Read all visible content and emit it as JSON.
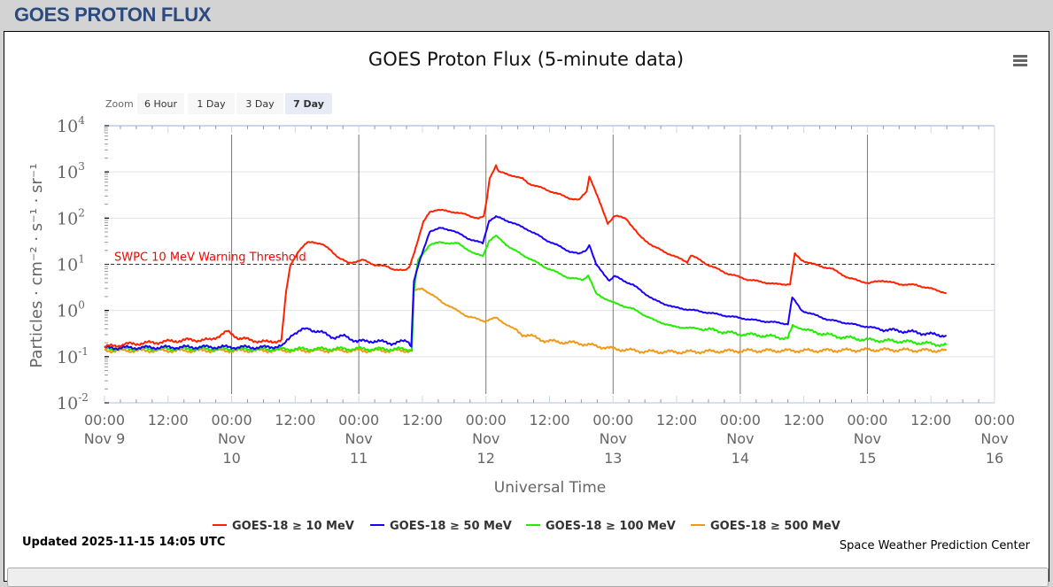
{
  "page_title": "GOES PROTON FLUX",
  "menu_icon": "hamburger-menu-icon",
  "zoom": {
    "label": "Zoom",
    "buttons": [
      "6 Hour",
      "1 Day",
      "3 Day",
      "7 Day"
    ],
    "selected": "7 Day"
  },
  "updated": "Updated 2025-11-15 14:05 UTC",
  "credit": "Space Weather Prediction Center",
  "chart_data": {
    "type": "line",
    "title": "GOES Proton Flux (5-minute data)",
    "xlabel": "Universal Time",
    "ylabel": "Particles · cm⁻² · s⁻¹ · sr⁻¹",
    "yscale": "log",
    "ylim_log10": [
      -2,
      4
    ],
    "y_ticks": [
      {
        "base": "10",
        "exp": "4"
      },
      {
        "base": "10",
        "exp": "3"
      },
      {
        "base": "10",
        "exp": "2"
      },
      {
        "base": "10",
        "exp": "1"
      },
      {
        "base": "10",
        "exp": "0"
      },
      {
        "base": "10",
        "exp": "-1"
      },
      {
        "base": "10",
        "exp": "-2"
      }
    ],
    "x_unit": "hours since 2025-11-09 00:00 UTC",
    "xlim": [
      0,
      168
    ],
    "x_ticks": [
      {
        "time": "00:00",
        "l2": "Nov 9",
        "l3": ""
      },
      {
        "time": "12:00",
        "l2": "",
        "l3": ""
      },
      {
        "time": "00:00",
        "l2": "Nov",
        "l3": "10"
      },
      {
        "time": "12:00",
        "l2": "",
        "l3": ""
      },
      {
        "time": "00:00",
        "l2": "Nov",
        "l3": "11"
      },
      {
        "time": "12:00",
        "l2": "",
        "l3": ""
      },
      {
        "time": "00:00",
        "l2": "Nov",
        "l3": "12"
      },
      {
        "time": "12:00",
        "l2": "",
        "l3": ""
      },
      {
        "time": "00:00",
        "l2": "Nov",
        "l3": "13"
      },
      {
        "time": "12:00",
        "l2": "",
        "l3": ""
      },
      {
        "time": "00:00",
        "l2": "Nov",
        "l3": "14"
      },
      {
        "time": "12:00",
        "l2": "",
        "l3": ""
      },
      {
        "time": "00:00",
        "l2": "Nov",
        "l3": "15"
      },
      {
        "time": "12:00",
        "l2": "",
        "l3": ""
      },
      {
        "time": "00:00",
        "l2": "Nov",
        "l3": "16"
      }
    ],
    "threshold": {
      "label": "SWPC 10 MeV Warning Threshold",
      "value": 10,
      "color": "#ff0000"
    },
    "legend_position": "bottom-center",
    "series": [
      {
        "name": "GOES-18 ≥ 10 MeV",
        "color": "#ff2200",
        "log10_flux": [
          [
            0,
            -0.79
          ],
          [
            4.2,
            -0.73
          ],
          [
            9.9,
            -0.69
          ],
          [
            15.4,
            -0.64
          ],
          [
            19.9,
            -0.64
          ],
          [
            23.2,
            -0.46
          ],
          [
            25.4,
            -0.6
          ],
          [
            27.6,
            -0.64
          ],
          [
            30.9,
            -0.69
          ],
          [
            33.4,
            -0.64
          ],
          [
            34.3,
            0.42
          ],
          [
            35.1,
            0.99
          ],
          [
            36.6,
            1.28
          ],
          [
            38.3,
            1.47
          ],
          [
            39.3,
            1.49
          ],
          [
            41,
            1.43
          ],
          [
            42.6,
            1.32
          ],
          [
            44.3,
            1.13
          ],
          [
            46,
            1.03
          ],
          [
            48.8,
            1.09
          ],
          [
            51,
            0.99
          ],
          [
            53.3,
            0.95
          ],
          [
            54.4,
            0.9
          ],
          [
            56.7,
            0.86
          ],
          [
            57.5,
            0.93
          ],
          [
            58.5,
            1.28
          ],
          [
            60.2,
            1.91
          ],
          [
            61.4,
            2.14
          ],
          [
            62.7,
            2.18
          ],
          [
            65.6,
            2.14
          ],
          [
            68.4,
            2.07
          ],
          [
            70.6,
            1.99
          ],
          [
            71.6,
            2.03
          ],
          [
            72.2,
            2.43
          ],
          [
            72.7,
            2.87
          ],
          [
            73.9,
            3.14
          ],
          [
            74.4,
            3.0
          ],
          [
            76.8,
            2.93
          ],
          [
            78.9,
            2.85
          ],
          [
            80.1,
            2.75
          ],
          [
            83.3,
            2.62
          ],
          [
            87.8,
            2.43
          ],
          [
            89.6,
            2.39
          ],
          [
            91,
            2.58
          ],
          [
            91.5,
            2.91
          ],
          [
            92.1,
            2.75
          ],
          [
            93.5,
            2.33
          ],
          [
            95,
            1.89
          ],
          [
            96.3,
            2.05
          ],
          [
            98.5,
            1.99
          ],
          [
            101,
            1.61
          ],
          [
            103.7,
            1.38
          ],
          [
            107.4,
            1.18
          ],
          [
            110,
            1.05
          ],
          [
            110.7,
            1.2
          ],
          [
            113.9,
            0.99
          ],
          [
            117.6,
            0.8
          ],
          [
            121.4,
            0.67
          ],
          [
            126.6,
            0.57
          ],
          [
            129.4,
            0.57
          ],
          [
            130.3,
            1.22
          ],
          [
            131.6,
            1.09
          ],
          [
            134.1,
            0.99
          ],
          [
            137.3,
            0.9
          ],
          [
            140.5,
            0.7
          ],
          [
            144.3,
            0.59
          ],
          [
            146.8,
            0.65
          ],
          [
            150,
            0.57
          ],
          [
            153.2,
            0.55
          ],
          [
            156.4,
            0.46
          ],
          [
            158.9,
            0.38
          ]
        ]
      },
      {
        "name": "GOES-18 ≥ 50 MeV",
        "color": "#1a00ff",
        "log10_flux": [
          [
            0,
            -0.81
          ],
          [
            10,
            -0.8
          ],
          [
            20,
            -0.79
          ],
          [
            30,
            -0.8
          ],
          [
            33.7,
            -0.77
          ],
          [
            35.5,
            -0.5
          ],
          [
            38.3,
            -0.39
          ],
          [
            41,
            -0.48
          ],
          [
            43.3,
            -0.58
          ],
          [
            45.5,
            -0.56
          ],
          [
            47.7,
            -0.67
          ],
          [
            51,
            -0.66
          ],
          [
            54.4,
            -0.71
          ],
          [
            57.2,
            -0.66
          ],
          [
            57.9,
            -0.75
          ],
          [
            58.4,
            0.65
          ],
          [
            59.4,
            1.03
          ],
          [
            61.4,
            1.72
          ],
          [
            63.4,
            1.78
          ],
          [
            65.6,
            1.74
          ],
          [
            68.4,
            1.57
          ],
          [
            71.4,
            1.45
          ],
          [
            72.6,
            1.95
          ],
          [
            73.9,
            2.03
          ],
          [
            76.8,
            1.91
          ],
          [
            80.1,
            1.74
          ],
          [
            83.3,
            1.53
          ],
          [
            87.8,
            1.28
          ],
          [
            89.6,
            1.22
          ],
          [
            91,
            1.32
          ],
          [
            91.5,
            1.43
          ],
          [
            92.8,
            0.99
          ],
          [
            95.3,
            0.65
          ],
          [
            96.3,
            0.74
          ],
          [
            99.8,
            0.55
          ],
          [
            103.7,
            0.23
          ],
          [
            107.4,
            0.07
          ],
          [
            112.5,
            -0.02
          ],
          [
            117.6,
            -0.12
          ],
          [
            122.7,
            -0.21
          ],
          [
            129,
            -0.29
          ],
          [
            129.8,
            0.28
          ],
          [
            131.6,
            0.0
          ],
          [
            136.6,
            -0.2
          ],
          [
            141.8,
            -0.31
          ],
          [
            146.8,
            -0.41
          ],
          [
            152,
            -0.46
          ],
          [
            156.4,
            -0.52
          ],
          [
            158.9,
            -0.54
          ]
        ]
      },
      {
        "name": "GOES-18 ≥ 100 MeV",
        "color": "#22ee00",
        "log10_flux": [
          [
            0,
            -0.83
          ],
          [
            15,
            -0.83
          ],
          [
            30,
            -0.84
          ],
          [
            45,
            -0.83
          ],
          [
            58,
            -0.84
          ],
          [
            58.4,
            0.42
          ],
          [
            59.2,
            1.09
          ],
          [
            61.4,
            1.43
          ],
          [
            63.4,
            1.47
          ],
          [
            66.7,
            1.45
          ],
          [
            70,
            1.22
          ],
          [
            71.4,
            1.18
          ],
          [
            72.6,
            1.51
          ],
          [
            73.9,
            1.61
          ],
          [
            76.8,
            1.34
          ],
          [
            80.1,
            1.13
          ],
          [
            83.3,
            0.93
          ],
          [
            87.8,
            0.7
          ],
          [
            90.3,
            0.67
          ],
          [
            91.3,
            0.76
          ],
          [
            92.8,
            0.36
          ],
          [
            96,
            0.17
          ],
          [
            99.8,
            0.03
          ],
          [
            103.7,
            -0.21
          ],
          [
            107.4,
            -0.35
          ],
          [
            113.9,
            -0.41
          ],
          [
            118.9,
            -0.5
          ],
          [
            124,
            -0.54
          ],
          [
            129,
            -0.6
          ],
          [
            129.9,
            -0.33
          ],
          [
            132.9,
            -0.44
          ],
          [
            138,
            -0.56
          ],
          [
            144.3,
            -0.64
          ],
          [
            150.7,
            -0.67
          ],
          [
            158.9,
            -0.75
          ]
        ]
      },
      {
        "name": "GOES-18 ≥ 500 MeV",
        "color": "#f09a1a",
        "log10_flux": [
          [
            0,
            -0.87
          ],
          [
            15,
            -0.87
          ],
          [
            30,
            -0.87
          ],
          [
            45,
            -0.87
          ],
          [
            58,
            -0.87
          ],
          [
            58.3,
            0.42
          ],
          [
            60,
            0.48
          ],
          [
            63.9,
            0.17
          ],
          [
            68.4,
            -0.12
          ],
          [
            71.7,
            -0.23
          ],
          [
            73.9,
            -0.16
          ],
          [
            78.9,
            -0.52
          ],
          [
            80.1,
            -0.54
          ],
          [
            83.3,
            -0.66
          ],
          [
            89.6,
            -0.71
          ],
          [
            96,
            -0.83
          ],
          [
            102.3,
            -0.89
          ],
          [
            108.7,
            -0.9
          ],
          [
            121.4,
            -0.87
          ],
          [
            134.1,
            -0.87
          ],
          [
            146.8,
            -0.85
          ],
          [
            158.9,
            -0.87
          ]
        ]
      }
    ]
  }
}
